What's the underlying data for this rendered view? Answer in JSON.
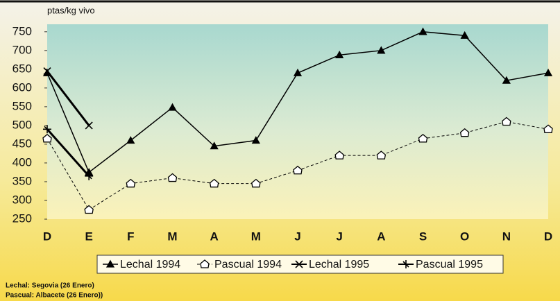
{
  "chart_data": {
    "type": "line",
    "ylabel": "ptas/kg vivo",
    "categories": [
      "D",
      "E",
      "F",
      "M",
      "A",
      "M",
      "J",
      "J",
      "A",
      "S",
      "O",
      "N",
      "D"
    ],
    "series": [
      {
        "name": "Lechal 1994",
        "color": "#000000",
        "marker": "triangle",
        "style": "solid",
        "linewidth": 1.5,
        "values": [
          640,
          375,
          460,
          548,
          445,
          460,
          640,
          688,
          700,
          750,
          740,
          620,
          640
        ]
      },
      {
        "name": "Pascual 1994",
        "color": "#000000",
        "marker": "pentagon",
        "style": "dashed",
        "linewidth": 1,
        "values": [
          465,
          275,
          345,
          360,
          345,
          345,
          380,
          420,
          420,
          465,
          480,
          510,
          490
        ]
      },
      {
        "name": "Lechal 1995",
        "color": "#000000",
        "marker": "x",
        "style": "solid",
        "linewidth": 3,
        "values": [
          645,
          500,
          null,
          null,
          null,
          null,
          null,
          null,
          null,
          null,
          null,
          null,
          null
        ]
      },
      {
        "name": "Pascual 1995",
        "color": "#000000",
        "marker": "plus",
        "style": "solid",
        "linewidth": 3,
        "values": [
          490,
          365,
          null,
          null,
          null,
          null,
          null,
          null,
          null,
          null,
          null,
          null,
          null
        ]
      }
    ],
    "ylim": [
      250,
      770
    ],
    "yticks": [
      250,
      300,
      350,
      400,
      450,
      500,
      550,
      600,
      650,
      700,
      750
    ],
    "legend": "bottom",
    "notes": [
      "Lechal: Segovia (26 Enero)",
      "Pascual: Albacete (26 Enero))"
    ]
  }
}
